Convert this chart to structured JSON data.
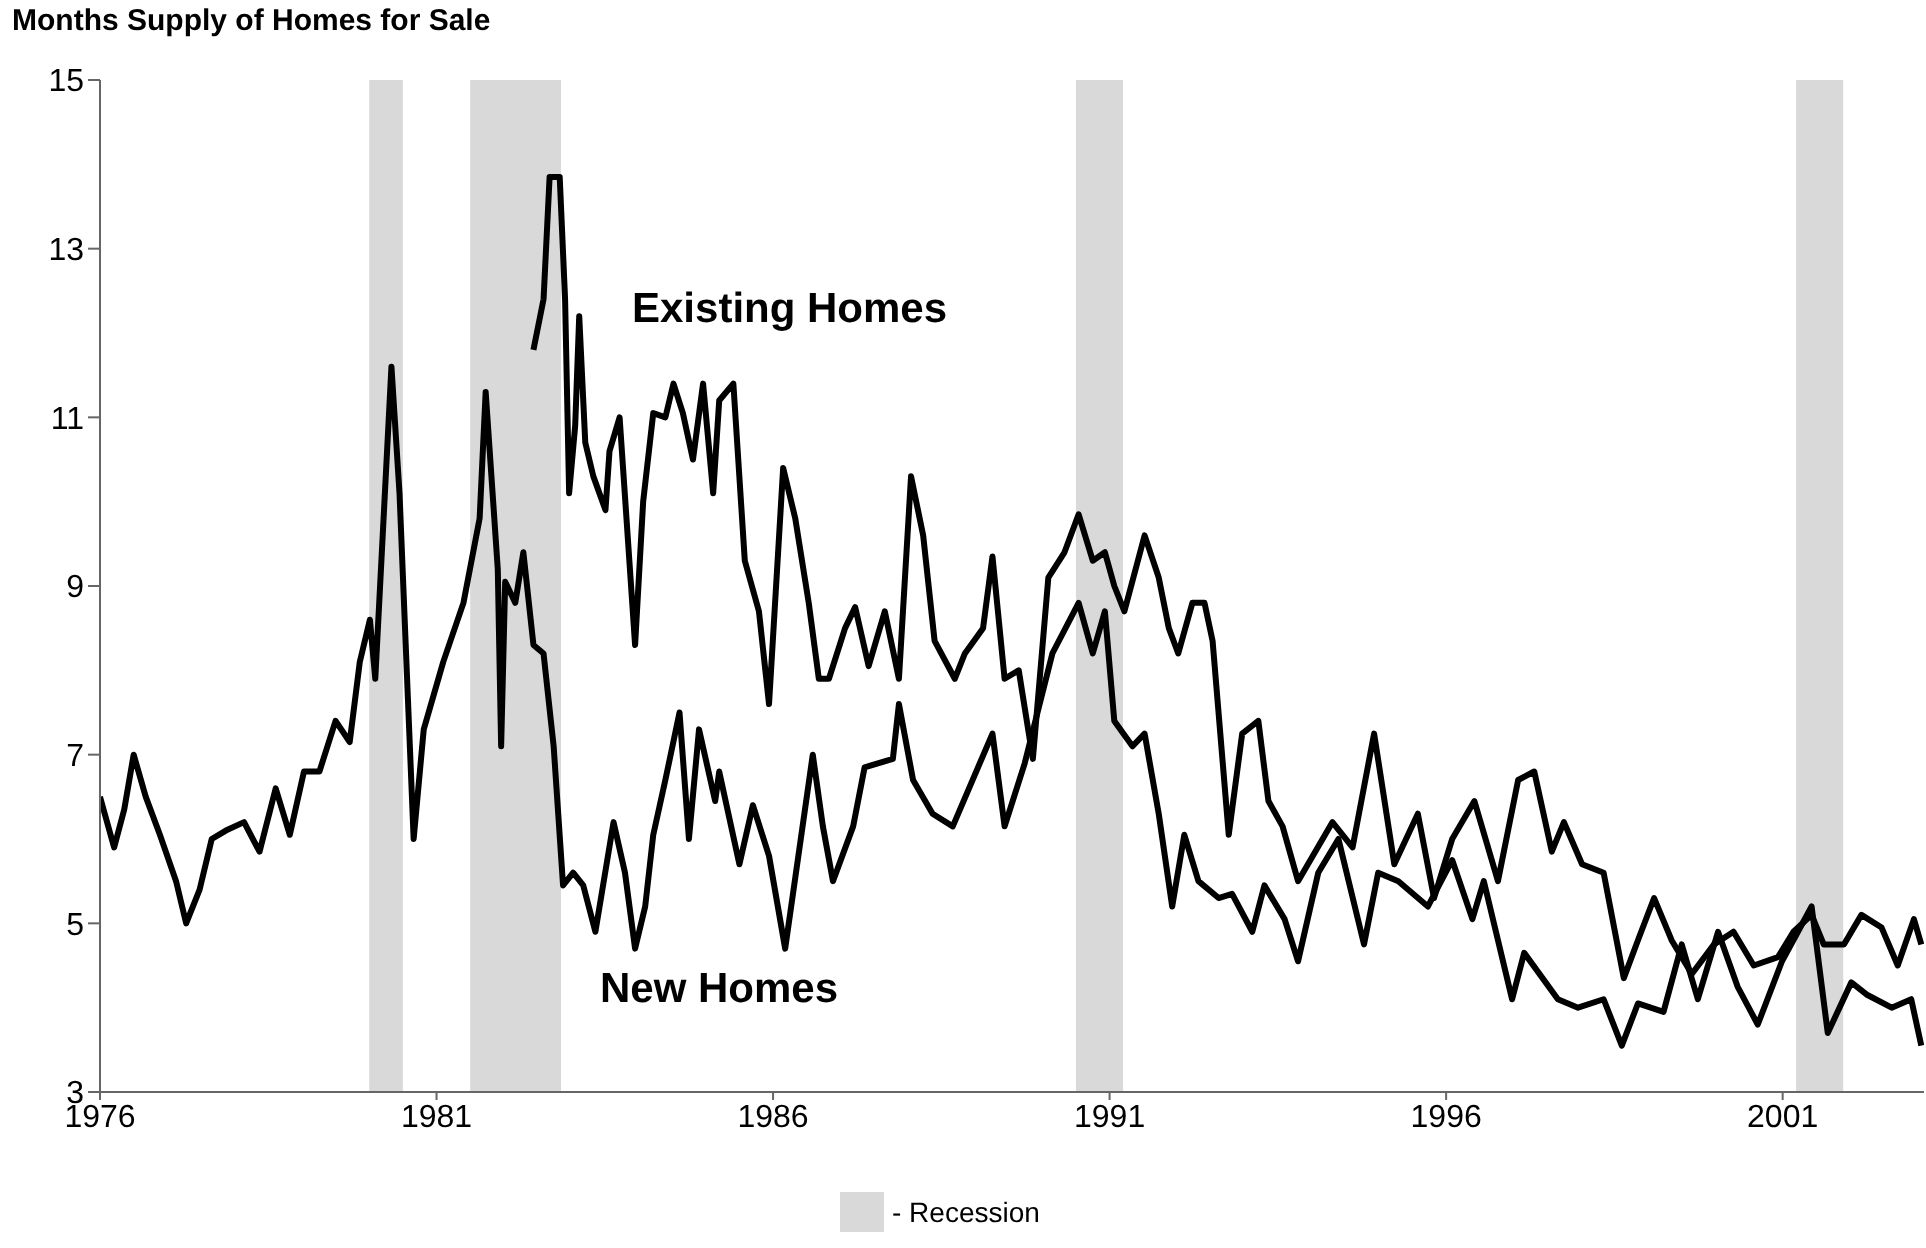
{
  "chart_data": {
    "type": "line",
    "title": "Months Supply of Homes for Sale",
    "xlim": [
      1976,
      2003.1
    ],
    "xticks": [
      1976,
      1981,
      1986,
      1991,
      1996,
      2001
    ],
    "ylim": [
      3,
      15
    ],
    "yticks": [
      3,
      5,
      7,
      9,
      11,
      13,
      15
    ],
    "grid": false,
    "legend": "bottom",
    "marker": "none",
    "line_style": "solid",
    "bands": [
      {
        "axis": "x",
        "from": 1980.0,
        "to": 1980.5,
        "label": "- Recession",
        "color": "#d9d9d9"
      },
      {
        "axis": "x",
        "from": 1981.5,
        "to": 1982.85,
        "color": "#d9d9d9"
      },
      {
        "axis": "x",
        "from": 1990.5,
        "to": 1991.2,
        "color": "#d9d9d9"
      },
      {
        "axis": "x",
        "from": 2001.2,
        "to": 2001.9,
        "color": "#d9d9d9"
      }
    ],
    "series": [
      {
        "name": "Existing Homes",
        "color": "#000000",
        "x": [
          1982.44,
          1982.59,
          1982.68,
          1982.83,
          1982.91,
          1982.97,
          1983.06,
          1983.12,
          1983.21,
          1983.33,
          1983.51,
          1983.57,
          1983.72,
          1983.95,
          1984.07,
          1984.22,
          1984.4,
          1984.52,
          1984.66,
          1984.81,
          1984.96,
          1985.11,
          1985.2,
          1985.41,
          1985.58,
          1985.79,
          1985.94,
          1986.15,
          1986.33,
          1986.53,
          1986.68,
          1986.83,
          1987.07,
          1987.22,
          1987.42,
          1987.66,
          1987.87,
          1988.05,
          1988.23,
          1988.4,
          1988.7,
          1988.85,
          1989.12,
          1989.26,
          1989.44,
          1989.65,
          1989.86,
          1990.09,
          1990.33,
          1990.54,
          1990.75,
          1990.93,
          1991.07,
          1991.22,
          1991.52,
          1991.73,
          1991.88,
          1992.02,
          1992.23,
          1992.41,
          1992.53,
          1992.77,
          1992.97,
          1993.21,
          1993.36,
          1993.57,
          1993.8,
          1994.31,
          1994.61,
          1994.93,
          1995.23,
          1995.58,
          1995.82,
          1996.09,
          1996.42,
          1996.77,
          1997.07,
          1997.31,
          1997.57,
          1997.75,
          1998.02,
          1998.34,
          1998.64,
          1998.85,
          1999.09,
          1999.35,
          1999.65,
          1999.98,
          2000.27,
          2000.57,
          2000.93,
          2001.16,
          2001.43,
          2001.61,
          2001.91,
          2002.17,
          2002.47,
          2002.71,
          2002.95,
          2003.06
        ],
        "values": [
          11.8,
          12.4,
          13.85,
          13.85,
          12.4,
          10.1,
          10.9,
          12.2,
          10.7,
          10.3,
          9.9,
          10.6,
          11.0,
          8.3,
          10.0,
          11.05,
          11.0,
          11.4,
          11.05,
          10.5,
          11.4,
          10.1,
          11.2,
          11.4,
          9.3,
          8.7,
          7.6,
          10.4,
          9.8,
          8.8,
          7.9,
          7.9,
          8.5,
          8.75,
          8.05,
          8.7,
          7.9,
          10.3,
          9.6,
          8.35,
          7.9,
          8.2,
          8.5,
          9.35,
          7.9,
          8.0,
          6.95,
          9.1,
          9.4,
          9.85,
          9.3,
          9.4,
          9.0,
          8.7,
          9.6,
          9.1,
          8.5,
          8.2,
          8.8,
          8.8,
          8.35,
          6.05,
          7.25,
          7.4,
          6.45,
          6.15,
          5.5,
          6.2,
          5.9,
          7.25,
          5.7,
          6.3,
          5.3,
          6.0,
          6.45,
          5.5,
          6.7,
          6.8,
          5.85,
          6.2,
          5.7,
          5.6,
          4.35,
          4.8,
          5.3,
          4.8,
          4.4,
          4.75,
          4.9,
          4.5,
          4.6,
          4.9,
          5.1,
          4.75,
          4.75,
          5.1,
          4.95,
          4.5,
          5.05,
          4.75
        ]
      },
      {
        "name": "New Homes",
        "color": "#000000",
        "x": [
          1976.0,
          1976.21,
          1976.36,
          1976.5,
          1976.68,
          1976.89,
          1977.13,
          1977.28,
          1977.48,
          1977.66,
          1977.87,
          1978.14,
          1978.37,
          1978.61,
          1978.82,
          1979.03,
          1979.26,
          1979.5,
          1979.71,
          1979.86,
          1980.01,
          1980.09,
          1980.33,
          1980.45,
          1980.66,
          1980.81,
          1981.1,
          1981.4,
          1981.64,
          1981.73,
          1981.91,
          1981.96,
          1982.02,
          1982.17,
          1982.29,
          1982.44,
          1982.59,
          1982.74,
          1982.88,
          1983.03,
          1983.18,
          1983.36,
          1983.63,
          1983.8,
          1983.95,
          1984.1,
          1984.22,
          1984.4,
          1984.61,
          1984.75,
          1984.9,
          1985.14,
          1985.2,
          1985.5,
          1985.7,
          1985.94,
          1986.18,
          1986.59,
          1986.74,
          1986.89,
          1987.19,
          1987.36,
          1987.78,
          1987.87,
          1988.08,
          1988.37,
          1988.67,
          1989.26,
          1989.44,
          1989.74,
          1990.15,
          1990.54,
          1990.75,
          1990.93,
          1991.07,
          1991.34,
          1991.52,
          1991.73,
          1991.93,
          1992.11,
          1992.32,
          1992.62,
          1992.82,
          1993.12,
          1993.3,
          1993.6,
          1993.8,
          1994.1,
          1994.4,
          1994.78,
          1994.99,
          1995.29,
          1995.73,
          1996.09,
          1996.39,
          1996.56,
          1996.98,
          1997.16,
          1997.66,
          1997.96,
          1998.34,
          1998.61,
          1998.85,
          1999.23,
          1999.5,
          1999.74,
          2000.04,
          2000.33,
          2000.63,
          2000.99,
          2001.43,
          2001.67,
          2002.02,
          2002.26,
          2002.62,
          2002.91,
          2003.06
        ],
        "values": [
          6.5,
          5.9,
          6.35,
          7.0,
          6.5,
          6.05,
          5.5,
          5.0,
          5.4,
          6.0,
          6.1,
          6.2,
          5.85,
          6.6,
          6.05,
          6.8,
          6.8,
          7.4,
          7.15,
          8.1,
          8.6,
          7.9,
          11.6,
          10.1,
          6.0,
          7.3,
          8.1,
          8.8,
          9.8,
          11.3,
          9.2,
          7.1,
          9.05,
          8.8,
          9.4,
          8.3,
          8.2,
          7.1,
          5.45,
          5.6,
          5.45,
          4.9,
          6.2,
          5.6,
          4.7,
          5.2,
          6.05,
          6.7,
          7.5,
          6.0,
          7.3,
          6.45,
          6.8,
          5.7,
          6.4,
          5.8,
          4.7,
          7.0,
          6.15,
          5.5,
          6.15,
          6.85,
          6.95,
          7.6,
          6.7,
          6.3,
          6.15,
          7.25,
          6.15,
          6.9,
          8.2,
          8.8,
          8.2,
          8.7,
          7.4,
          7.1,
          7.25,
          6.3,
          5.2,
          6.05,
          5.5,
          5.3,
          5.35,
          4.9,
          5.45,
          5.05,
          4.55,
          5.6,
          6.0,
          4.75,
          5.6,
          5.5,
          5.2,
          5.75,
          5.05,
          5.5,
          4.1,
          4.65,
          4.1,
          4.0,
          4.1,
          3.55,
          4.05,
          3.95,
          4.75,
          4.1,
          4.9,
          4.25,
          3.8,
          4.55,
          5.2,
          3.7,
          4.3,
          4.15,
          4.0,
          4.1,
          3.55
        ]
      }
    ]
  }
}
